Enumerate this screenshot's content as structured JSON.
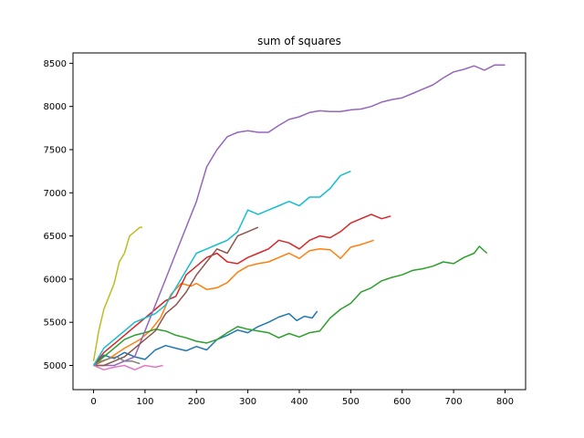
{
  "chart_data": {
    "type": "line",
    "title": "sum of squares",
    "xlabel": "",
    "ylabel": "",
    "xlim": [
      -40,
      840
    ],
    "ylim": [
      4720,
      8620
    ],
    "xticks": [
      0,
      100,
      200,
      300,
      400,
      500,
      600,
      700,
      800
    ],
    "yticks": [
      5000,
      5500,
      6000,
      6500,
      7000,
      7500,
      8000,
      8500
    ],
    "grid": false,
    "series": [
      {
        "color": "#1f77b4",
        "points": [
          [
            0,
            5000
          ],
          [
            20,
            5120
          ],
          [
            40,
            5080
          ],
          [
            60,
            5150
          ],
          [
            80,
            5100
          ],
          [
            100,
            5070
          ],
          [
            120,
            5180
          ],
          [
            140,
            5230
          ],
          [
            160,
            5200
          ],
          [
            180,
            5170
          ],
          [
            200,
            5220
          ],
          [
            220,
            5180
          ],
          [
            240,
            5300
          ],
          [
            260,
            5350
          ],
          [
            280,
            5410
          ],
          [
            300,
            5380
          ],
          [
            320,
            5450
          ],
          [
            340,
            5500
          ],
          [
            360,
            5560
          ],
          [
            380,
            5600
          ],
          [
            395,
            5520
          ],
          [
            410,
            5570
          ],
          [
            425,
            5550
          ],
          [
            435,
            5630
          ]
        ]
      },
      {
        "color": "#ff7f0e",
        "points": [
          [
            0,
            5000
          ],
          [
            30,
            5080
          ],
          [
            60,
            5200
          ],
          [
            90,
            5300
          ],
          [
            110,
            5400
          ],
          [
            130,
            5550
          ],
          [
            150,
            5820
          ],
          [
            170,
            5950
          ],
          [
            190,
            5920
          ],
          [
            200,
            5950
          ],
          [
            220,
            5880
          ],
          [
            240,
            5900
          ],
          [
            260,
            5960
          ],
          [
            280,
            6080
          ],
          [
            300,
            6150
          ],
          [
            320,
            6180
          ],
          [
            340,
            6200
          ],
          [
            360,
            6250
          ],
          [
            380,
            6300
          ],
          [
            400,
            6240
          ],
          [
            420,
            6330
          ],
          [
            440,
            6350
          ],
          [
            460,
            6340
          ],
          [
            480,
            6240
          ],
          [
            500,
            6370
          ],
          [
            520,
            6400
          ],
          [
            545,
            6450
          ]
        ]
      },
      {
        "color": "#2ca02c",
        "points": [
          [
            0,
            5000
          ],
          [
            20,
            5100
          ],
          [
            40,
            5200
          ],
          [
            60,
            5300
          ],
          [
            80,
            5350
          ],
          [
            100,
            5380
          ],
          [
            120,
            5420
          ],
          [
            140,
            5400
          ],
          [
            160,
            5350
          ],
          [
            180,
            5320
          ],
          [
            200,
            5280
          ],
          [
            220,
            5260
          ],
          [
            240,
            5300
          ],
          [
            260,
            5380
          ],
          [
            280,
            5450
          ],
          [
            300,
            5420
          ],
          [
            320,
            5400
          ],
          [
            340,
            5380
          ],
          [
            360,
            5320
          ],
          [
            380,
            5370
          ],
          [
            400,
            5330
          ],
          [
            420,
            5380
          ],
          [
            440,
            5400
          ],
          [
            460,
            5550
          ],
          [
            480,
            5650
          ],
          [
            500,
            5720
          ],
          [
            520,
            5850
          ],
          [
            540,
            5900
          ],
          [
            560,
            5980
          ],
          [
            580,
            6020
          ],
          [
            600,
            6050
          ],
          [
            620,
            6100
          ],
          [
            640,
            6120
          ],
          [
            660,
            6150
          ],
          [
            680,
            6200
          ],
          [
            700,
            6180
          ],
          [
            720,
            6250
          ],
          [
            740,
            6300
          ],
          [
            750,
            6380
          ],
          [
            765,
            6300
          ]
        ]
      },
      {
        "color": "#d62728",
        "points": [
          [
            0,
            5000
          ],
          [
            20,
            5150
          ],
          [
            40,
            5250
          ],
          [
            60,
            5350
          ],
          [
            80,
            5450
          ],
          [
            100,
            5550
          ],
          [
            120,
            5650
          ],
          [
            140,
            5750
          ],
          [
            160,
            5800
          ],
          [
            180,
            6050
          ],
          [
            200,
            6150
          ],
          [
            220,
            6250
          ],
          [
            240,
            6300
          ],
          [
            260,
            6200
          ],
          [
            280,
            6180
          ],
          [
            300,
            6250
          ],
          [
            320,
            6300
          ],
          [
            340,
            6350
          ],
          [
            360,
            6450
          ],
          [
            380,
            6420
          ],
          [
            400,
            6350
          ],
          [
            420,
            6450
          ],
          [
            440,
            6500
          ],
          [
            460,
            6480
          ],
          [
            480,
            6550
          ],
          [
            500,
            6650
          ],
          [
            520,
            6700
          ],
          [
            540,
            6750
          ],
          [
            560,
            6700
          ],
          [
            578,
            6730
          ]
        ]
      },
      {
        "color": "#9467bd",
        "points": [
          [
            0,
            5000
          ],
          [
            40,
            5000
          ],
          [
            80,
            5100
          ],
          [
            100,
            5400
          ],
          [
            120,
            5700
          ],
          [
            140,
            6000
          ],
          [
            160,
            6300
          ],
          [
            180,
            6600
          ],
          [
            200,
            6900
          ],
          [
            220,
            7300
          ],
          [
            240,
            7500
          ],
          [
            260,
            7650
          ],
          [
            280,
            7700
          ],
          [
            300,
            7720
          ],
          [
            320,
            7700
          ],
          [
            340,
            7700
          ],
          [
            360,
            7780
          ],
          [
            380,
            7850
          ],
          [
            400,
            7880
          ],
          [
            420,
            7930
          ],
          [
            440,
            7950
          ],
          [
            460,
            7940
          ],
          [
            480,
            7940
          ],
          [
            500,
            7960
          ],
          [
            520,
            7970
          ],
          [
            540,
            8000
          ],
          [
            560,
            8050
          ],
          [
            580,
            8080
          ],
          [
            600,
            8100
          ],
          [
            620,
            8150
          ],
          [
            640,
            8200
          ],
          [
            660,
            8250
          ],
          [
            680,
            8330
          ],
          [
            700,
            8400
          ],
          [
            720,
            8430
          ],
          [
            740,
            8470
          ],
          [
            760,
            8420
          ],
          [
            780,
            8480
          ],
          [
            800,
            8480
          ]
        ]
      },
      {
        "color": "#8c564b",
        "points": [
          [
            0,
            5000
          ],
          [
            20,
            5000
          ],
          [
            40,
            5050
          ],
          [
            60,
            5100
          ],
          [
            80,
            5200
          ],
          [
            100,
            5300
          ],
          [
            120,
            5400
          ],
          [
            140,
            5600
          ],
          [
            160,
            5700
          ],
          [
            180,
            5850
          ],
          [
            200,
            6050
          ],
          [
            220,
            6200
          ],
          [
            240,
            6350
          ],
          [
            260,
            6300
          ],
          [
            280,
            6500
          ],
          [
            300,
            6550
          ],
          [
            320,
            6600
          ]
        ]
      },
      {
        "color": "#e377c2",
        "points": [
          [
            0,
            5000
          ],
          [
            20,
            4950
          ],
          [
            40,
            4980
          ],
          [
            60,
            5000
          ],
          [
            80,
            4950
          ],
          [
            100,
            5000
          ],
          [
            120,
            4980
          ],
          [
            135,
            5000
          ]
        ]
      },
      {
        "color": "#7f7f7f",
        "points": [
          [
            0,
            5000
          ],
          [
            15,
            5050
          ],
          [
            30,
            5080
          ],
          [
            45,
            5100
          ],
          [
            60,
            5050
          ],
          [
            75,
            5050
          ],
          [
            90,
            5020
          ]
        ]
      },
      {
        "color": "#bcbd22",
        "points": [
          [
            0,
            5050
          ],
          [
            10,
            5400
          ],
          [
            20,
            5650
          ],
          [
            30,
            5800
          ],
          [
            40,
            5950
          ],
          [
            50,
            6200
          ],
          [
            60,
            6300
          ],
          [
            70,
            6500
          ],
          [
            80,
            6550
          ],
          [
            90,
            6600
          ],
          [
            95,
            6600
          ]
        ]
      },
      {
        "color": "#17becf",
        "points": [
          [
            0,
            5000
          ],
          [
            20,
            5200
          ],
          [
            40,
            5300
          ],
          [
            60,
            5400
          ],
          [
            80,
            5500
          ],
          [
            100,
            5550
          ],
          [
            120,
            5600
          ],
          [
            140,
            5700
          ],
          [
            160,
            5900
          ],
          [
            180,
            6100
          ],
          [
            200,
            6300
          ],
          [
            220,
            6350
          ],
          [
            240,
            6400
          ],
          [
            260,
            6450
          ],
          [
            280,
            6550
          ],
          [
            300,
            6800
          ],
          [
            320,
            6750
          ],
          [
            340,
            6800
          ],
          [
            360,
            6850
          ],
          [
            380,
            6900
          ],
          [
            400,
            6850
          ],
          [
            420,
            6950
          ],
          [
            440,
            6950
          ],
          [
            460,
            7050
          ],
          [
            480,
            7200
          ],
          [
            500,
            7250
          ]
        ]
      }
    ]
  }
}
